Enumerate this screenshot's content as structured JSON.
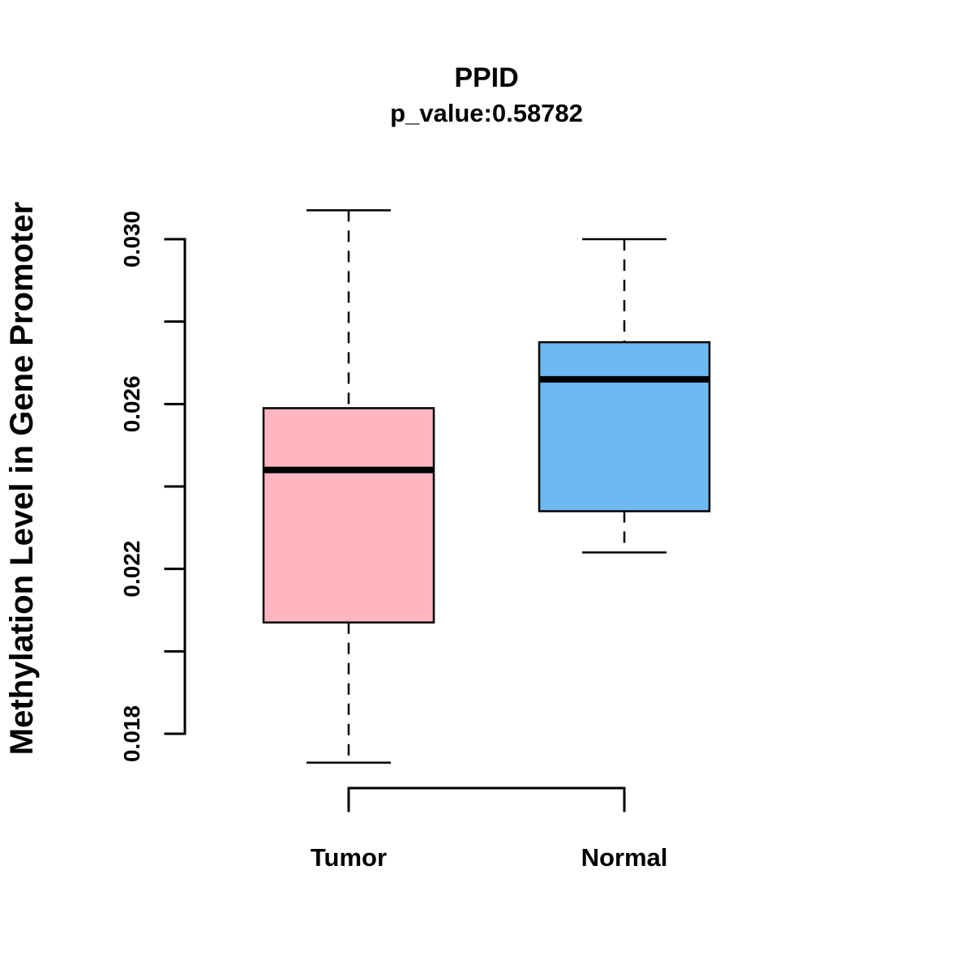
{
  "chart_data": {
    "type": "boxplot",
    "title": "PPID",
    "subtitle": "p_value:0.58782",
    "ylabel": "Methylation Level in Gene Promoter",
    "xlabel": "",
    "categories": [
      "Tumor",
      "Normal"
    ],
    "series": [
      {
        "name": "Tumor",
        "color": "#FFB6C1",
        "whisker_low": 0.0173,
        "q1": 0.0207,
        "median": 0.0244,
        "q3": 0.0259,
        "whisker_high": 0.0307
      },
      {
        "name": "Normal",
        "color": "#6EB9F2",
        "whisker_low": 0.0224,
        "q1": 0.0234,
        "median": 0.0266,
        "q3": 0.0275,
        "whisker_high": 0.03
      }
    ],
    "y_axis": {
      "ylim": [
        0.0168,
        0.0312
      ],
      "ticks": [
        {
          "value": 0.018,
          "label": "0.018"
        },
        {
          "value": 0.02,
          "label": ""
        },
        {
          "value": 0.022,
          "label": "0.022"
        },
        {
          "value": 0.024,
          "label": ""
        },
        {
          "value": 0.026,
          "label": "0.026"
        },
        {
          "value": 0.028,
          "label": ""
        },
        {
          "value": 0.03,
          "label": "0.030"
        }
      ],
      "tick_label_rotation": 90
    },
    "grid": "off",
    "legend": "none",
    "background": "#ffffff"
  }
}
